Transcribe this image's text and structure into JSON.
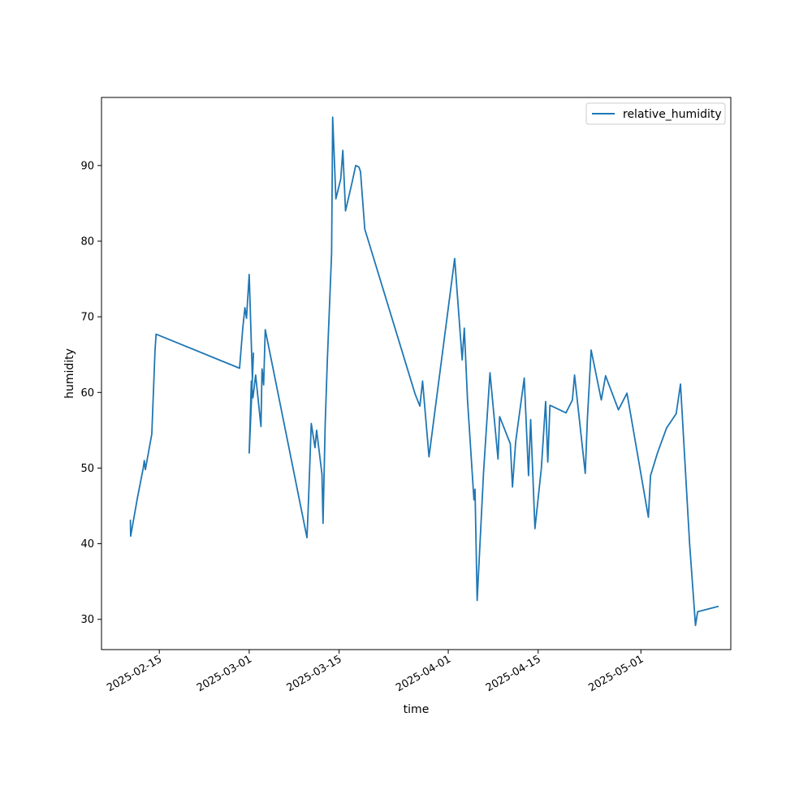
{
  "chart_data": {
    "type": "line",
    "xlabel": "time",
    "ylabel": "humidity",
    "x_ticks": [
      "2025-02-15",
      "2025-03-01",
      "2025-03-15",
      "2025-04-01",
      "2025-04-15",
      "2025-05-01"
    ],
    "y_ticks": [
      30,
      40,
      50,
      60,
      70,
      80,
      90
    ],
    "xlim": [
      "2025-02-06",
      "2025-05-15"
    ],
    "ylim": [
      26.0,
      99.0
    ],
    "legend": {
      "placement": "top-right",
      "entries": [
        "relative_humidity"
      ]
    },
    "grid": false,
    "series": [
      {
        "name": "relative_humidity",
        "color": "#1f77b4",
        "points": [
          [
            "2025-02-10T12:00",
            43.1
          ],
          [
            "2025-02-10T13:00",
            41.0
          ],
          [
            "2025-02-11T14:00",
            46.0
          ],
          [
            "2025-02-12T12:00",
            50.0
          ],
          [
            "2025-02-12T16:00",
            51.0
          ],
          [
            "2025-02-12T20:00",
            49.8
          ],
          [
            "2025-02-13T20:00",
            54.5
          ],
          [
            "2025-02-14T08:00",
            65.5
          ],
          [
            "2025-02-14T12:00",
            67.7
          ],
          [
            "2025-02-27T12:00",
            63.2
          ],
          [
            "2025-02-28T00:00",
            68.5
          ],
          [
            "2025-02-28T08:00",
            71.2
          ],
          [
            "2025-02-28T14:00",
            69.8
          ],
          [
            "2025-02-29T00:00",
            75.6
          ],
          [
            "2025-02-29T04:00",
            71.0
          ],
          [
            "2025-02-29T12:00",
            61.8
          ],
          [
            "2025-02-29T16:00",
            65.2
          ],
          [
            "2025-03-01T00:00",
            52.0
          ],
          [
            "2025-03-01T08:00",
            61.5
          ],
          [
            "2025-03-01T14:00",
            59.3
          ],
          [
            "2025-03-02T00:00",
            62.3
          ],
          [
            "2025-03-02T20:00",
            55.5
          ],
          [
            "2025-03-03T00:00",
            63.1
          ],
          [
            "2025-03-03T06:00",
            61.0
          ],
          [
            "2025-03-03T12:00",
            68.3
          ],
          [
            "2025-03-10T00:00",
            40.8
          ],
          [
            "2025-03-10T06:00",
            46.0
          ],
          [
            "2025-03-10T16:00",
            55.9
          ],
          [
            "2025-03-11T06:00",
            52.7
          ],
          [
            "2025-03-11T12:00",
            55.0
          ],
          [
            "2025-03-12T08:00",
            49.2
          ],
          [
            "2025-03-12T12:00",
            42.7
          ],
          [
            "2025-03-12T20:00",
            55.8
          ],
          [
            "2025-03-13T04:00",
            64.2
          ],
          [
            "2025-03-13T20:00",
            78.4
          ],
          [
            "2025-03-14T00:00",
            96.4
          ],
          [
            "2025-03-14T12:00",
            85.6
          ],
          [
            "2025-03-15T06:00",
            88.2
          ],
          [
            "2025-03-15T14:00",
            92.0
          ],
          [
            "2025-03-16T00:00",
            84.0
          ],
          [
            "2025-03-17T02:00",
            88.0
          ],
          [
            "2025-03-17T14:00",
            90.0
          ],
          [
            "2025-03-18T02:00",
            89.8
          ],
          [
            "2025-03-18T08:00",
            89.2
          ],
          [
            "2025-03-19T00:00",
            81.6
          ],
          [
            "2025-03-26T20:00",
            59.8
          ],
          [
            "2025-03-27T14:00",
            58.2
          ],
          [
            "2025-03-28T00:00",
            61.5
          ],
          [
            "2025-03-29T00:00",
            51.5
          ],
          [
            "2025-04-02T00:00",
            77.7
          ],
          [
            "2025-04-03T04:00",
            64.3
          ],
          [
            "2025-04-03T12:00",
            68.5
          ],
          [
            "2025-04-04T00:00",
            59.0
          ],
          [
            "2025-04-05T00:00",
            45.8
          ],
          [
            "2025-04-05T04:00",
            47.2
          ],
          [
            "2025-04-05T12:00",
            32.5
          ],
          [
            "2025-04-06T12:00",
            49.5
          ],
          [
            "2025-04-07T12:00",
            62.6
          ],
          [
            "2025-04-08T18:00",
            51.2
          ],
          [
            "2025-04-09T00:00",
            56.8
          ],
          [
            "2025-04-10T16:00",
            53.2
          ],
          [
            "2025-04-11T00:00",
            47.5
          ],
          [
            "2025-04-11T12:00",
            53.5
          ],
          [
            "2025-04-12T20:00",
            61.9
          ],
          [
            "2025-04-13T12:00",
            49.0
          ],
          [
            "2025-04-13T20:00",
            56.4
          ],
          [
            "2025-04-14T12:00",
            42.0
          ],
          [
            "2025-04-15T12:00",
            50.0
          ],
          [
            "2025-04-16T04:00",
            58.8
          ],
          [
            "2025-04-16T12:00",
            50.8
          ],
          [
            "2025-04-16T20:00",
            58.3
          ],
          [
            "2025-04-19T08:00",
            57.3
          ],
          [
            "2025-04-20T08:00",
            59.0
          ],
          [
            "2025-04-20T16:00",
            62.3
          ],
          [
            "2025-04-22T08:00",
            49.3
          ],
          [
            "2025-04-22T16:00",
            56.5
          ],
          [
            "2025-04-23T06:00",
            65.6
          ],
          [
            "2025-04-24T20:00",
            59.0
          ],
          [
            "2025-04-25T12:00",
            62.2
          ],
          [
            "2025-04-27T12:00",
            57.7
          ],
          [
            "2025-04-28T20:00",
            59.9
          ],
          [
            "2025-05-02T04:00",
            43.5
          ],
          [
            "2025-05-02T12:00",
            49.0
          ],
          [
            "2025-05-03T14:00",
            52.0
          ],
          [
            "2025-05-05T00:00",
            55.3
          ],
          [
            "2025-05-06T12:00",
            57.2
          ],
          [
            "2025-05-07T04:00",
            61.1
          ],
          [
            "2025-05-08T14:00",
            40.0
          ],
          [
            "2025-05-09T12:00",
            29.2
          ],
          [
            "2025-05-09T20:00",
            31.0
          ],
          [
            "2025-05-13T00:00",
            31.7
          ]
        ]
      }
    ]
  }
}
